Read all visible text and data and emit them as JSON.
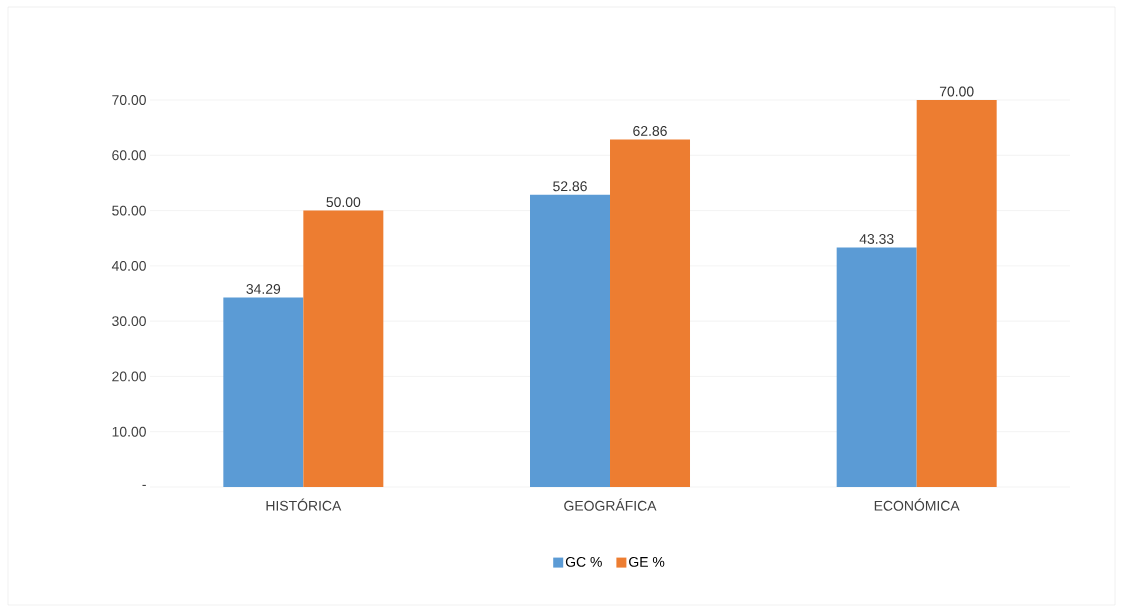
{
  "chart_data": {
    "type": "bar",
    "categories": [
      "HISTÓRICA",
      "GEOGRÁFICA",
      "ECONÓMICA"
    ],
    "series": [
      {
        "name": "GC %",
        "color": "#5b9bd5",
        "values": [
          34.29,
          52.86,
          43.33
        ],
        "value_labels": [
          "34.29",
          "52.86",
          "43.33"
        ]
      },
      {
        "name": "GE %",
        "color": "#ed7d31",
        "values": [
          50.0,
          62.86,
          70.0
        ],
        "value_labels": [
          "50.00",
          "62.86",
          "70.00"
        ]
      }
    ],
    "ylim": [
      0,
      70
    ],
    "yticks": [
      {
        "value": 0,
        "label": "-"
      },
      {
        "value": 10,
        "label": "10.00"
      },
      {
        "value": 20,
        "label": "20.00"
      },
      {
        "value": 30,
        "label": "30.00"
      },
      {
        "value": 40,
        "label": "40.00"
      },
      {
        "value": 50,
        "label": "50.00"
      },
      {
        "value": 60,
        "label": "60.00"
      },
      {
        "value": 70,
        "label": "70.00"
      }
    ],
    "grid": "y",
    "legend": "bottom"
  }
}
